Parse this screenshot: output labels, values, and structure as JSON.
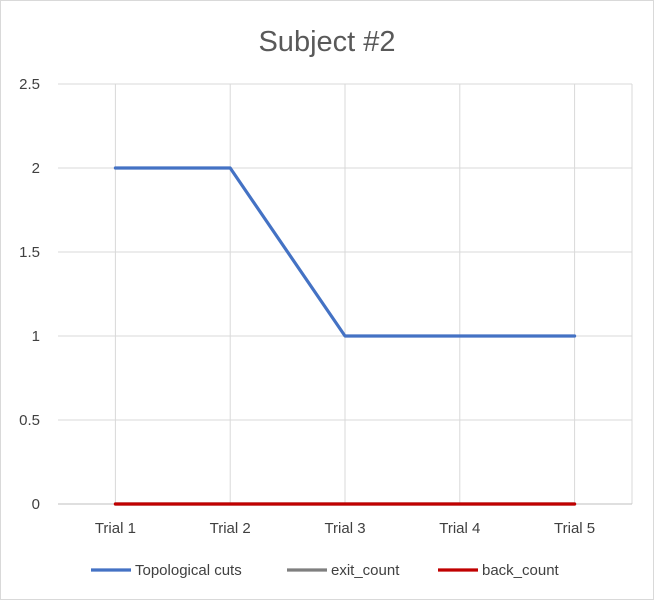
{
  "chart_data": {
    "type": "line",
    "title": "Subject #2",
    "xlabel": "",
    "ylabel": "",
    "categories": [
      "Trial 1",
      "Trial 2",
      "Trial 3",
      "Trial 4",
      "Trial 5"
    ],
    "ylim": [
      0,
      2.5
    ],
    "yticks": [
      "0",
      "0.5",
      "1",
      "1.5",
      "2",
      "2.5"
    ],
    "grid": true,
    "legend_position": "bottom",
    "series": [
      {
        "name": "Topological cuts",
        "color": "#4472C4",
        "values": [
          2,
          2,
          1,
          1,
          1
        ]
      },
      {
        "name": "exit_count",
        "color": "#7F7F7F",
        "values": [
          0,
          0,
          0,
          0,
          0
        ]
      },
      {
        "name": "back_count",
        "color": "#C00000",
        "values": [
          0,
          0,
          0,
          0,
          0
        ]
      }
    ]
  }
}
